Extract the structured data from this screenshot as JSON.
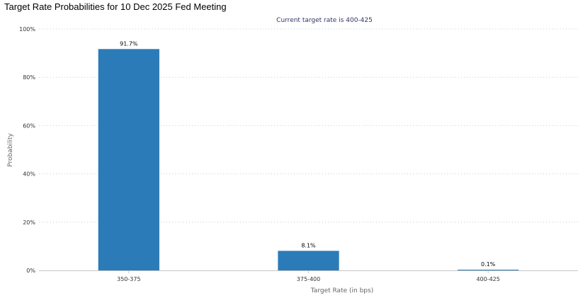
{
  "page_title": "Target Rate Probabilities for 10 Dec 2025 Fed Meeting",
  "chart_data": {
    "type": "bar",
    "title": "Target Rate Probabilities for 10 Dec 2025 Fed Meeting",
    "subtitle": "Current target rate is 400-425",
    "xlabel": "Target Rate (in bps)",
    "ylabel": "Probability",
    "categories": [
      "350-375",
      "375-400",
      "400-425"
    ],
    "values": [
      91.7,
      8.1,
      0.1
    ],
    "data_labels": [
      "91.7%",
      "8.1%",
      "0.1%"
    ],
    "ylim": [
      0,
      100
    ],
    "yticks": [
      0,
      20,
      40,
      60,
      80,
      100
    ],
    "ytick_labels": [
      "0%",
      "20%",
      "40%",
      "60%",
      "80%",
      "100%"
    ],
    "grid": true,
    "legend": "none",
    "colors": {
      "bar": "#2b7bb9",
      "grid": "#cccccc",
      "axis": "#c6c6c6",
      "tick_text": "#333333",
      "label_text": "#666666",
      "subtitle_text": "#333366"
    }
  }
}
